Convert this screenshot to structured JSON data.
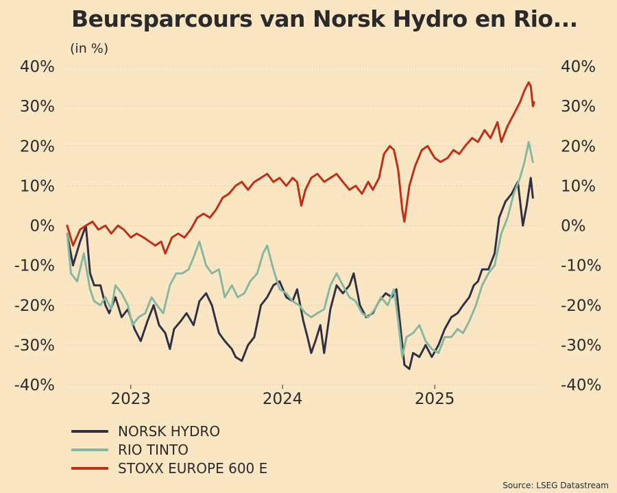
{
  "header": {
    "title": "Beursparcours van Norsk Hydro en Rio...",
    "unit": "(in %)"
  },
  "legend": {
    "items": [
      {
        "label": "NORSK HYDRO",
        "color": "#2f2f45"
      },
      {
        "label": "RIO TINTO",
        "color": "#85b8a0"
      },
      {
        "label": "STOXX EUROPE 600 E",
        "color": "#c22d14"
      }
    ]
  },
  "source": "Source: LSEG Datastream",
  "chart_data": {
    "type": "line",
    "title": "Beursparcours van Norsk Hydro en Rio...",
    "ylabel": "(in %)",
    "ylim": [
      -40,
      40
    ],
    "yticks": [
      40,
      30,
      20,
      10,
      0,
      -10,
      -20,
      -30,
      -40
    ],
    "ytick_labels": [
      "40%",
      "30%",
      "20%",
      "10%",
      "0%",
      "-10%",
      "-20%",
      "-30%",
      "-40%"
    ],
    "xlim": [
      "2022-08-01",
      "2025-09-15"
    ],
    "xticks": [
      {
        "date": "2023-01-01",
        "label": "2023"
      },
      {
        "date": "2024-01-01",
        "label": "2024"
      },
      {
        "date": "2025-01-01",
        "label": "2025"
      }
    ],
    "grid": true,
    "legend_position": "bottom-left",
    "series": [
      {
        "name": "NORSK HYDRO",
        "color": "#2f2f45",
        "points": [
          [
            "2022-08-01",
            -2
          ],
          [
            "2022-08-15",
            -10
          ],
          [
            "2022-09-01",
            -4
          ],
          [
            "2022-09-15",
            0
          ],
          [
            "2022-09-25",
            -12
          ],
          [
            "2022-10-05",
            -15
          ],
          [
            "2022-10-20",
            -15
          ],
          [
            "2022-11-01",
            -20
          ],
          [
            "2022-11-10",
            -22
          ],
          [
            "2022-11-25",
            -18
          ],
          [
            "2022-12-10",
            -23
          ],
          [
            "2022-12-25",
            -21
          ],
          [
            "2023-01-10",
            -26
          ],
          [
            "2023-01-25",
            -29
          ],
          [
            "2023-02-10",
            -24
          ],
          [
            "2023-02-25",
            -20
          ],
          [
            "2023-03-10",
            -25
          ],
          [
            "2023-03-25",
            -27
          ],
          [
            "2023-04-05",
            -31
          ],
          [
            "2023-04-15",
            -26
          ],
          [
            "2023-05-01",
            -24
          ],
          [
            "2023-05-15",
            -22
          ],
          [
            "2023-06-01",
            -25
          ],
          [
            "2023-06-15",
            -19
          ],
          [
            "2023-07-01",
            -17
          ],
          [
            "2023-07-15",
            -20
          ],
          [
            "2023-08-01",
            -27
          ],
          [
            "2023-08-15",
            -29
          ],
          [
            "2023-09-01",
            -31
          ],
          [
            "2023-09-10",
            -33
          ],
          [
            "2023-09-25",
            -34
          ],
          [
            "2023-10-10",
            -30
          ],
          [
            "2023-10-25",
            -28
          ],
          [
            "2023-11-10",
            -20
          ],
          [
            "2023-11-25",
            -18
          ],
          [
            "2023-12-10",
            -15
          ],
          [
            "2023-12-25",
            -14
          ],
          [
            "2024-01-10",
            -18
          ],
          [
            "2024-01-25",
            -19
          ],
          [
            "2024-02-05",
            -16
          ],
          [
            "2024-02-20",
            -24
          ],
          [
            "2024-03-01",
            -28
          ],
          [
            "2024-03-10",
            -32
          ],
          [
            "2024-03-20",
            -29
          ],
          [
            "2024-04-01",
            -25
          ],
          [
            "2024-04-10",
            -32
          ],
          [
            "2024-04-25",
            -21
          ],
          [
            "2024-05-10",
            -15
          ],
          [
            "2024-05-25",
            -17
          ],
          [
            "2024-06-10",
            -15
          ],
          [
            "2024-06-20",
            -12
          ],
          [
            "2024-07-05",
            -20
          ],
          [
            "2024-07-20",
            -23
          ],
          [
            "2024-08-05",
            -22
          ],
          [
            "2024-08-20",
            -19
          ],
          [
            "2024-09-05",
            -17
          ],
          [
            "2024-09-20",
            -18
          ],
          [
            "2024-10-01",
            -16
          ],
          [
            "2024-10-10",
            -25
          ],
          [
            "2024-10-20",
            -35
          ],
          [
            "2024-11-01",
            -36
          ],
          [
            "2024-11-10",
            -32
          ],
          [
            "2024-11-25",
            -33
          ],
          [
            "2024-12-10",
            -30
          ],
          [
            "2024-12-25",
            -33
          ],
          [
            "2025-01-10",
            -30
          ],
          [
            "2025-01-25",
            -26
          ],
          [
            "2025-02-10",
            -23
          ],
          [
            "2025-02-25",
            -22
          ],
          [
            "2025-03-10",
            -20
          ],
          [
            "2025-03-25",
            -18
          ],
          [
            "2025-04-05",
            -15
          ],
          [
            "2025-04-15",
            -14
          ],
          [
            "2025-04-25",
            -11
          ],
          [
            "2025-05-10",
            -11
          ],
          [
            "2025-05-25",
            -7
          ],
          [
            "2025-06-05",
            2
          ],
          [
            "2025-06-20",
            6
          ],
          [
            "2025-07-05",
            8
          ],
          [
            "2025-07-20",
            11
          ],
          [
            "2025-08-01",
            0
          ],
          [
            "2025-08-10",
            5
          ],
          [
            "2025-08-20",
            12
          ],
          [
            "2025-08-25",
            7
          ]
        ]
      },
      {
        "name": "RIO TINTO",
        "color": "#85b8a0",
        "points": [
          [
            "2022-08-01",
            -2
          ],
          [
            "2022-08-10",
            -12
          ],
          [
            "2022-08-25",
            -14
          ],
          [
            "2022-09-10",
            -7
          ],
          [
            "2022-09-25",
            -16
          ],
          [
            "2022-10-05",
            -19
          ],
          [
            "2022-10-20",
            -20
          ],
          [
            "2022-11-01",
            -18
          ],
          [
            "2022-11-15",
            -21
          ],
          [
            "2022-11-25",
            -15
          ],
          [
            "2022-12-10",
            -17
          ],
          [
            "2022-12-25",
            -20
          ],
          [
            "2023-01-05",
            -25
          ],
          [
            "2023-01-20",
            -23
          ],
          [
            "2023-02-05",
            -22
          ],
          [
            "2023-02-20",
            -18
          ],
          [
            "2023-03-05",
            -20
          ],
          [
            "2023-03-20",
            -22
          ],
          [
            "2023-04-05",
            -15
          ],
          [
            "2023-04-20",
            -12
          ],
          [
            "2023-05-05",
            -12
          ],
          [
            "2023-05-20",
            -11
          ],
          [
            "2023-06-01",
            -8
          ],
          [
            "2023-06-15",
            -4
          ],
          [
            "2023-07-01",
            -10
          ],
          [
            "2023-07-15",
            -12
          ],
          [
            "2023-08-01",
            -11
          ],
          [
            "2023-08-15",
            -18
          ],
          [
            "2023-09-01",
            -15
          ],
          [
            "2023-09-15",
            -18
          ],
          [
            "2023-10-01",
            -17
          ],
          [
            "2023-10-15",
            -14
          ],
          [
            "2023-11-01",
            -12
          ],
          [
            "2023-11-15",
            -7
          ],
          [
            "2023-11-25",
            -5
          ],
          [
            "2023-12-10",
            -11
          ],
          [
            "2023-12-25",
            -16
          ],
          [
            "2024-01-10",
            -17
          ],
          [
            "2024-01-25",
            -19
          ],
          [
            "2024-02-10",
            -20
          ],
          [
            "2024-02-25",
            -22
          ],
          [
            "2024-03-10",
            -23
          ],
          [
            "2024-03-25",
            -22
          ],
          [
            "2024-04-10",
            -21
          ],
          [
            "2024-04-25",
            -15
          ],
          [
            "2024-05-10",
            -12
          ],
          [
            "2024-05-25",
            -15
          ],
          [
            "2024-06-10",
            -18
          ],
          [
            "2024-06-25",
            -19
          ],
          [
            "2024-07-10",
            -22
          ],
          [
            "2024-07-25",
            -23
          ],
          [
            "2024-08-10",
            -21
          ],
          [
            "2024-08-25",
            -18
          ],
          [
            "2024-09-10",
            -20
          ],
          [
            "2024-09-25",
            -16
          ],
          [
            "2024-10-05",
            -24
          ],
          [
            "2024-10-15",
            -33
          ],
          [
            "2024-10-25",
            -28
          ],
          [
            "2024-11-10",
            -27
          ],
          [
            "2024-11-25",
            -25
          ],
          [
            "2024-12-10",
            -29
          ],
          [
            "2024-12-25",
            -31
          ],
          [
            "2025-01-10",
            -32
          ],
          [
            "2025-01-25",
            -28
          ],
          [
            "2025-02-10",
            -28
          ],
          [
            "2025-02-25",
            -26
          ],
          [
            "2025-03-10",
            -27
          ],
          [
            "2025-03-25",
            -24
          ],
          [
            "2025-04-10",
            -20
          ],
          [
            "2025-04-25",
            -15
          ],
          [
            "2025-05-10",
            -12
          ],
          [
            "2025-05-25",
            -10
          ],
          [
            "2025-06-10",
            -2
          ],
          [
            "2025-06-25",
            2
          ],
          [
            "2025-07-10",
            8
          ],
          [
            "2025-07-25",
            12
          ],
          [
            "2025-08-05",
            16
          ],
          [
            "2025-08-15",
            21
          ],
          [
            "2025-08-25",
            16
          ]
        ]
      },
      {
        "name": "STOXX EUROPE 600 E",
        "color": "#c22d14",
        "points": [
          [
            "2022-08-01",
            0
          ],
          [
            "2022-08-15",
            -5
          ],
          [
            "2022-09-01",
            -1
          ],
          [
            "2022-09-15",
            0
          ],
          [
            "2022-10-01",
            1
          ],
          [
            "2022-10-15",
            -1
          ],
          [
            "2022-11-01",
            0
          ],
          [
            "2022-11-15",
            -2
          ],
          [
            "2022-12-01",
            0
          ],
          [
            "2022-12-15",
            -1
          ],
          [
            "2023-01-01",
            -3
          ],
          [
            "2023-01-15",
            -2
          ],
          [
            "2023-02-01",
            -3
          ],
          [
            "2023-02-15",
            -4
          ],
          [
            "2023-03-01",
            -5
          ],
          [
            "2023-03-15",
            -4
          ],
          [
            "2023-03-25",
            -7
          ],
          [
            "2023-04-10",
            -3
          ],
          [
            "2023-04-25",
            -2
          ],
          [
            "2023-05-10",
            -3
          ],
          [
            "2023-05-25",
            -1
          ],
          [
            "2023-06-10",
            2
          ],
          [
            "2023-06-25",
            3
          ],
          [
            "2023-07-10",
            2
          ],
          [
            "2023-07-25",
            4
          ],
          [
            "2023-08-10",
            7
          ],
          [
            "2023-08-25",
            8
          ],
          [
            "2023-09-10",
            10
          ],
          [
            "2023-09-25",
            11
          ],
          [
            "2023-10-10",
            9
          ],
          [
            "2023-10-25",
            11
          ],
          [
            "2023-11-10",
            12
          ],
          [
            "2023-11-25",
            13
          ],
          [
            "2023-12-10",
            11
          ],
          [
            "2023-12-25",
            12
          ],
          [
            "2024-01-10",
            10
          ],
          [
            "2024-01-25",
            12
          ],
          [
            "2024-02-05",
            11
          ],
          [
            "2024-02-15",
            5
          ],
          [
            "2024-02-25",
            9
          ],
          [
            "2024-03-10",
            12
          ],
          [
            "2024-03-25",
            13
          ],
          [
            "2024-04-10",
            11
          ],
          [
            "2024-04-25",
            12
          ],
          [
            "2024-05-10",
            13
          ],
          [
            "2024-05-25",
            11
          ],
          [
            "2024-06-10",
            9
          ],
          [
            "2024-06-25",
            10
          ],
          [
            "2024-07-10",
            8
          ],
          [
            "2024-07-25",
            11
          ],
          [
            "2024-08-05",
            9
          ],
          [
            "2024-08-20",
            12
          ],
          [
            "2024-09-01",
            18
          ],
          [
            "2024-09-15",
            20
          ],
          [
            "2024-09-25",
            19
          ],
          [
            "2024-10-05",
            14
          ],
          [
            "2024-10-15",
            4
          ],
          [
            "2024-10-20",
            1
          ],
          [
            "2024-11-01",
            10
          ],
          [
            "2024-11-15",
            15
          ],
          [
            "2024-12-01",
            19
          ],
          [
            "2024-12-15",
            20
          ],
          [
            "2025-01-01",
            17
          ],
          [
            "2025-01-15",
            16
          ],
          [
            "2025-02-01",
            17
          ],
          [
            "2025-02-15",
            19
          ],
          [
            "2025-03-01",
            18
          ],
          [
            "2025-03-15",
            20
          ],
          [
            "2025-04-01",
            22
          ],
          [
            "2025-04-15",
            21
          ],
          [
            "2025-05-01",
            24
          ],
          [
            "2025-05-15",
            22
          ],
          [
            "2025-06-01",
            26
          ],
          [
            "2025-06-10",
            21
          ],
          [
            "2025-06-25",
            25
          ],
          [
            "2025-07-10",
            28
          ],
          [
            "2025-07-25",
            31
          ],
          [
            "2025-08-05",
            34
          ],
          [
            "2025-08-15",
            36
          ],
          [
            "2025-08-20",
            35
          ],
          [
            "2025-08-25",
            30
          ],
          [
            "2025-08-28",
            31
          ]
        ]
      }
    ]
  }
}
